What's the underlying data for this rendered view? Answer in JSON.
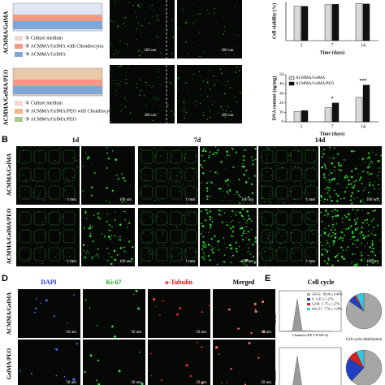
{
  "panel_a": {
    "rows": [
      "ACMMA/GelMA",
      "ACMMA/GelMA/PEO"
    ],
    "legend_top": [
      "① Culture medium",
      "② ACMMA/GelMA with Chondrocytes",
      "③ ACMMA/GelMA"
    ],
    "legend_bottom": [
      "① Culture medium",
      "② ACMMA/GelMA/PEO with Chondrocytes",
      "③ ACMMA/GelMA/PEO"
    ],
    "scale": "200 um"
  },
  "chart_data": [
    {
      "type": "bar",
      "ylabel": "Cell viability (%)",
      "xlabel": "Time (days)",
      "categories": [
        "1",
        "7",
        "14"
      ],
      "series": [
        {
          "color": "#d9d9d9",
          "values": [
            88,
            92,
            95
          ]
        },
        {
          "color": "#111111",
          "values": [
            88,
            93,
            94
          ]
        }
      ],
      "ylim": [
        0,
        100
      ]
    },
    {
      "type": "bar",
      "ylabel": "DNA content (ng/mg)",
      "xlabel": "Time (days)",
      "categories": [
        "1",
        "7",
        "14"
      ],
      "series": [
        {
          "name": "ACMMA/GelMA",
          "color": "#d9d9d9",
          "values": [
            11,
            15,
            26
          ]
        },
        {
          "name": "ACMMA/GelMA/PEO",
          "color": "#111111",
          "values": [
            12,
            20,
            39
          ]
        }
      ],
      "ylim": [
        0,
        50
      ],
      "yticks": [
        0,
        10,
        20,
        30,
        40,
        50
      ],
      "annotations": [
        "*",
        "***"
      ]
    }
  ],
  "panel_b": {
    "label": "B",
    "days": [
      "1d",
      "7d",
      "14d"
    ],
    "rows": [
      "ACMMA/GelMA",
      "ACMMA/GelMA/PEO"
    ],
    "scale_low": "1 mm",
    "scale_high": "100 um"
  },
  "panel_d": {
    "label": "D",
    "columns": [
      "DAPI",
      "Ki-67",
      "α-Tubulin",
      "Merged"
    ],
    "rows": [
      "ACMMA/GelMA",
      "GelMA/PEO"
    ],
    "scale": "50 um"
  },
  "panel_e": {
    "label": "E",
    "title": "Cell cycle",
    "pie_title": "Cell cycle distribution",
    "xlabel": "Channels (PE-CF594-A)",
    "ylabel": "Number",
    "legend": [
      "G0/G1 : 86.06 ± 0.46%",
      "S : 6.45 ± 1.27%",
      "G2/M : 1.75 ± 1.27%",
      "Sub-G1 : 7.56 ± 3.38%"
    ],
    "pie_colors": [
      "#a6a6a6",
      "#1f3fbf",
      "#d42020",
      "#39c6e0"
    ],
    "pies": [
      [
        86.06,
        6.45,
        1.75,
        7.56
      ],
      [
        62,
        22,
        9,
        7
      ]
    ]
  }
}
